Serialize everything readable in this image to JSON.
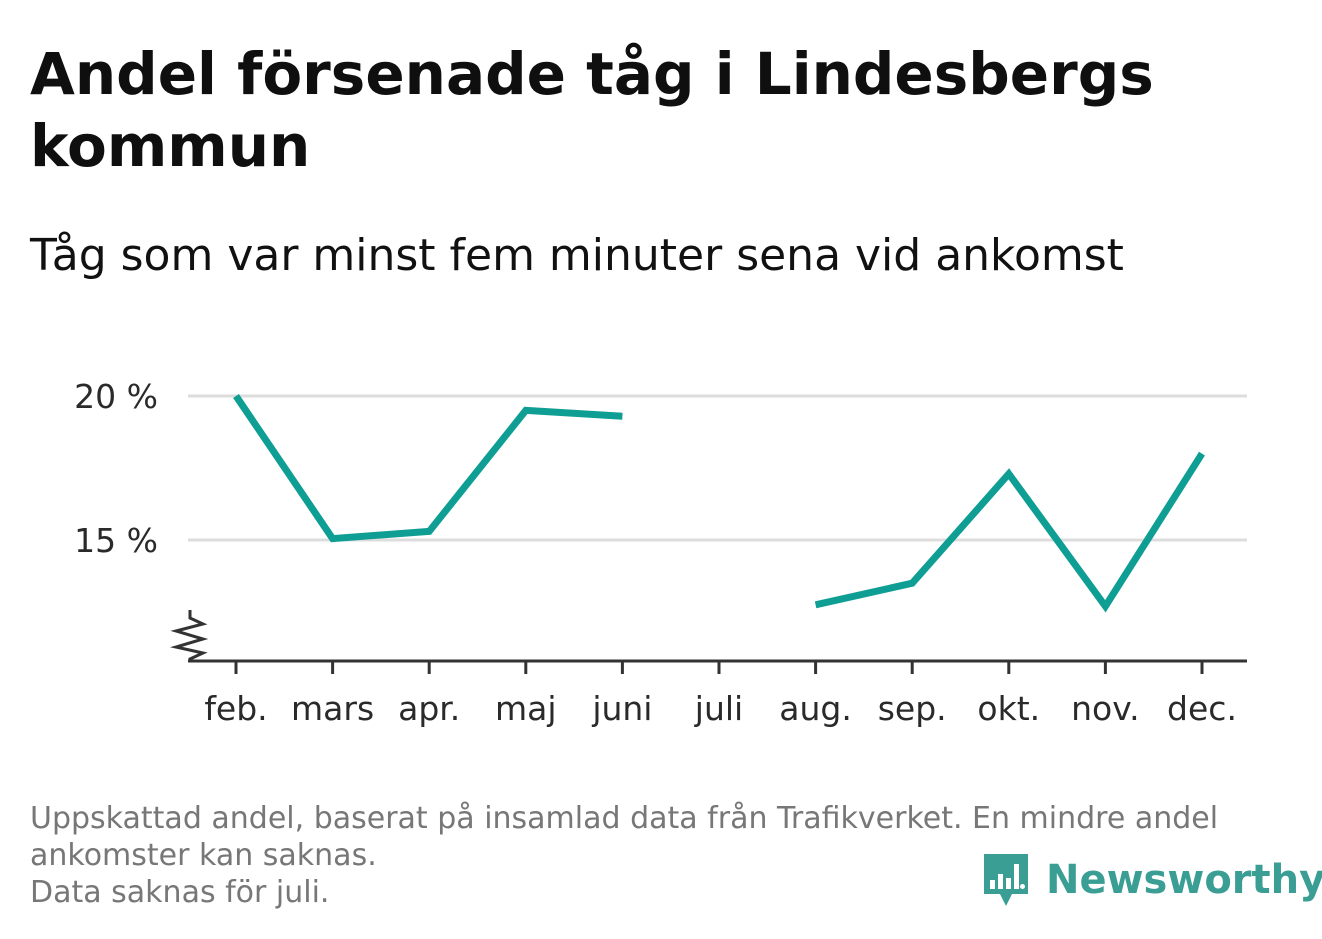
{
  "colors": {
    "line": "#0f9e94",
    "grid": "#dddddd",
    "axis": "#333333",
    "brand": "#3a9e94",
    "footer_text": "#777777"
  },
  "header": {
    "title": "Andel försenade tåg i Lindesbergs kommun",
    "subtitle": "Tåg som var minst fem minuter sena vid ankomst"
  },
  "footer": {
    "note_line1": "Uppskattad andel, baserat på insamlad data från Trafikverket. En mindre andel",
    "note_line2": "ankomster kan saknas.",
    "note_line3": "Data saknas för juli."
  },
  "brand": {
    "name": "Newsworthy",
    "icon": "newsworthy-logo-icon"
  },
  "chart_data": {
    "type": "line",
    "title": "Andel försenade tåg i Lindesbergs kommun",
    "subtitle": "Tåg som var minst fem minuter sena vid ankomst",
    "categories": [
      "feb.",
      "mars",
      "apr.",
      "maj",
      "juni",
      "juli",
      "aug.",
      "sep.",
      "okt.",
      "nov.",
      "dec."
    ],
    "series": [
      {
        "values": [
          20.0,
          15.05,
          15.3,
          19.5,
          19.3,
          null,
          12.75,
          13.5,
          17.3,
          12.7,
          18.0
        ]
      }
    ],
    "ylim": [
      10.8,
      20.0
    ],
    "yticks": [
      15,
      20
    ],
    "ytick_labels": [
      "15 %",
      "20 %"
    ],
    "y_axis_break": true,
    "grid": true,
    "legend": "none",
    "xlabel": "",
    "ylabel": ""
  }
}
